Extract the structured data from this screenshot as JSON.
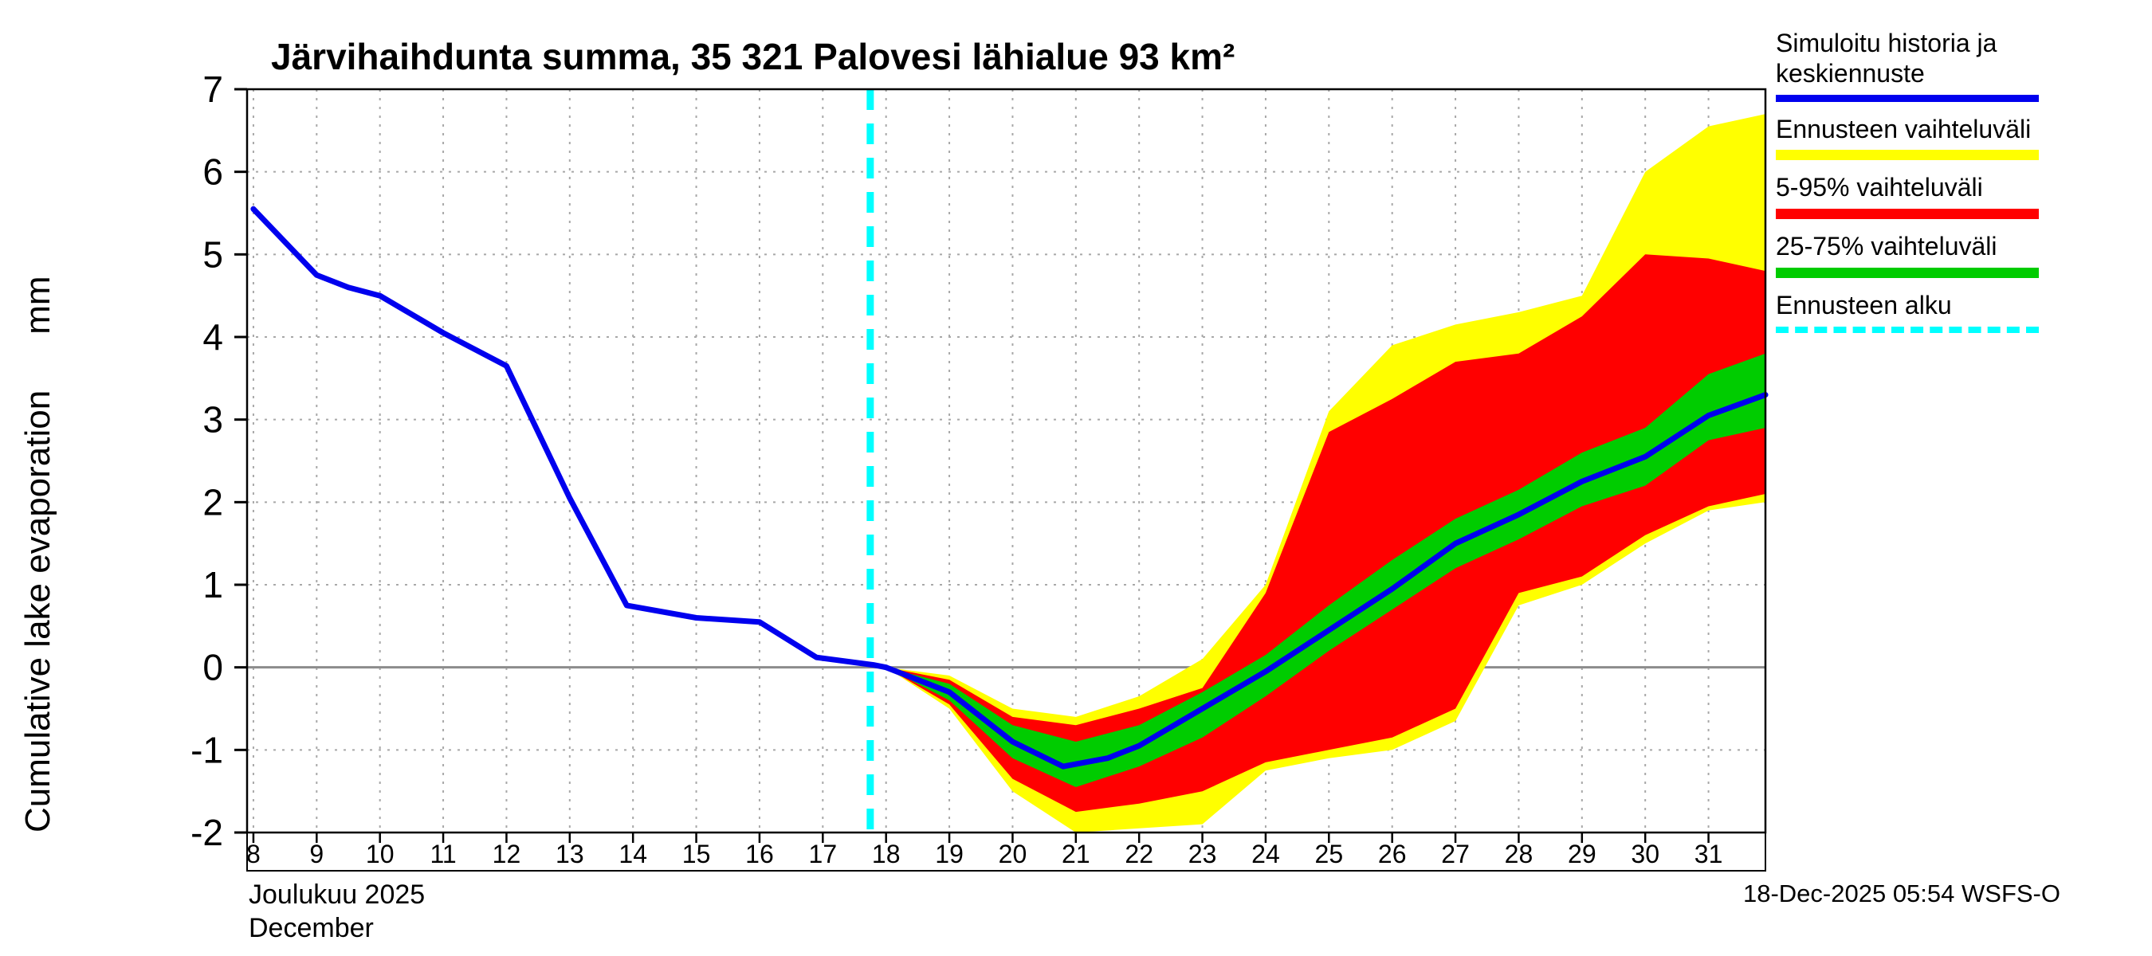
{
  "page": {
    "title": "Järvihaihdunta summa, 35 321 Palovesi lähialue 93 km²",
    "timestamp": "18-Dec-2025 05:54 WSFS-O"
  },
  "axes": {
    "y_label": "Cumulative lake evaporation",
    "y_unit": "mm",
    "x_month_fi": "Joulukuu 2025",
    "x_month_en": "December"
  },
  "legend": {
    "items": [
      {
        "label": "Simuloitu historia ja keskiennuste",
        "color": "#0000ee",
        "style": "solid",
        "height": 9
      },
      {
        "label": "Ennusteen vaihteluväli",
        "color": "#ffff00",
        "style": "solid",
        "height": 13
      },
      {
        "label": "5-95% vaihteluväli",
        "color": "#ff0000",
        "style": "solid",
        "height": 13
      },
      {
        "label": "25-75% vaihteluväli",
        "color": "#00cc00",
        "style": "solid",
        "height": 13
      },
      {
        "label": "Ennusteen alku",
        "color": "#00ffff",
        "style": "dashed",
        "height": 8
      }
    ]
  },
  "chart_data": {
    "type": "line",
    "title": "Järvihaihdunta summa, 35 321 Palovesi lähialue 93 km²",
    "xlabel": "Joulukuu 2025 (December)",
    "ylabel": "Cumulative lake evaporation (mm)",
    "xlim": [
      7.9,
      31.9
    ],
    "ylim": [
      -2,
      7
    ],
    "xticks": [
      8,
      9,
      10,
      11,
      12,
      13,
      14,
      15,
      16,
      17,
      18,
      19,
      20,
      21,
      22,
      23,
      24,
      25,
      26,
      27,
      28,
      29,
      30,
      31
    ],
    "yticks": [
      -2,
      -1,
      0,
      1,
      2,
      3,
      4,
      5,
      6,
      7
    ],
    "grid": true,
    "legend_position": "top-right",
    "forecast_start_x": 17.75,
    "colors": {
      "mean_line": "#0000ee",
      "band_total": "#ffff00",
      "band_5_95": "#ff0000",
      "band_25_75": "#00cc00",
      "forecast_start": "#00ffff",
      "zero_line": "#8c8c8c",
      "grid": "#a8a8a8"
    },
    "history": {
      "name": "Simuloitu historia",
      "x": [
        8,
        9,
        9.5,
        10,
        11,
        12,
        13,
        13.9,
        15,
        16,
        16.9,
        17.8,
        18
      ],
      "y": [
        5.55,
        4.75,
        4.6,
        4.5,
        4.05,
        3.65,
        2.05,
        0.75,
        0.6,
        0.55,
        0.12,
        0.03,
        0.0
      ]
    },
    "forecast_mean": {
      "name": "Keskiennuste",
      "x": [
        18,
        19,
        20,
        20.8,
        21.5,
        22,
        23,
        24,
        25,
        26,
        27,
        28,
        29,
        30,
        31,
        31.9
      ],
      "y": [
        0.0,
        -0.3,
        -0.9,
        -1.2,
        -1.1,
        -0.95,
        -0.5,
        -0.05,
        0.45,
        0.95,
        1.5,
        1.85,
        2.25,
        2.55,
        3.05,
        3.3
      ]
    },
    "band_total": {
      "name": "Ennusteen vaihteluväli",
      "x": [
        18,
        19,
        20,
        21,
        22,
        23,
        24,
        25,
        26,
        27,
        28,
        29,
        30,
        31,
        31.9
      ],
      "lower": [
        0.0,
        -0.5,
        -1.5,
        -2.0,
        -1.95,
        -1.9,
        -1.25,
        -1.1,
        -1.0,
        -0.65,
        0.75,
        1.0,
        1.5,
        1.9,
        2.0
      ],
      "upper": [
        0.0,
        -0.1,
        -0.5,
        -0.6,
        -0.35,
        0.1,
        1.0,
        3.1,
        3.9,
        4.15,
        4.3,
        4.5,
        6.0,
        6.55,
        6.7
      ]
    },
    "band_5_95": {
      "name": "5-95% vaihteluväli",
      "x": [
        18,
        19,
        20,
        21,
        22,
        23,
        24,
        25,
        26,
        27,
        28,
        29,
        30,
        31,
        31.9
      ],
      "lower": [
        0.0,
        -0.45,
        -1.35,
        -1.75,
        -1.65,
        -1.5,
        -1.15,
        -1.0,
        -0.85,
        -0.5,
        0.9,
        1.1,
        1.6,
        1.95,
        2.1
      ],
      "upper": [
        0.0,
        -0.15,
        -0.6,
        -0.7,
        -0.5,
        -0.25,
        0.9,
        2.85,
        3.25,
        3.7,
        3.8,
        4.25,
        5.0,
        4.95,
        4.8
      ]
    },
    "band_25_75": {
      "name": "25-75% vaihteluväli",
      "x": [
        18,
        19,
        20,
        21,
        22,
        23,
        24,
        25,
        26,
        27,
        28,
        29,
        30,
        31,
        31.9
      ],
      "lower": [
        0.0,
        -0.4,
        -1.1,
        -1.45,
        -1.2,
        -0.85,
        -0.35,
        0.2,
        0.7,
        1.2,
        1.55,
        1.95,
        2.2,
        2.75,
        2.9
      ],
      "upper": [
        0.0,
        -0.2,
        -0.7,
        -0.9,
        -0.7,
        -0.3,
        0.15,
        0.75,
        1.3,
        1.8,
        2.15,
        2.6,
        2.9,
        3.55,
        3.8
      ]
    }
  }
}
